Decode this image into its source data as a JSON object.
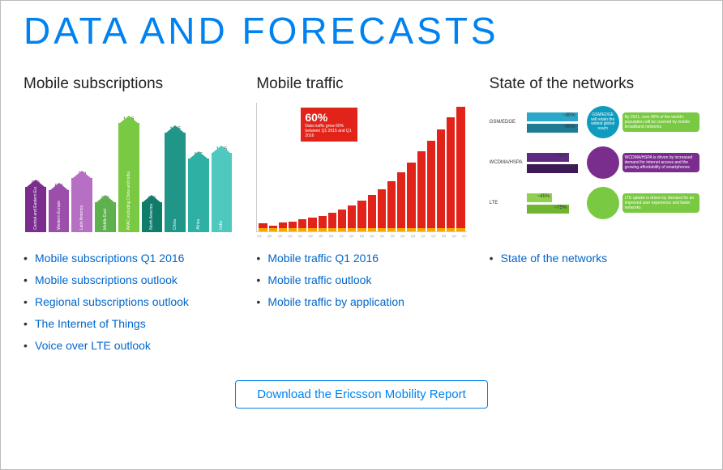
{
  "page_title": "DATA AND FORECASTS",
  "accent_color": "#0082f0",
  "columns": {
    "subscriptions": {
      "title": "Mobile subscriptions",
      "chart": {
        "type": "bar-arrow",
        "max": 1425,
        "bars": [
          {
            "label": "Central and Eastern Europe",
            "value": 590,
            "color": "#7b2d8e"
          },
          {
            "label": "Western Europe",
            "value": 550,
            "color": "#9b4fab"
          },
          {
            "label": "Latin America",
            "value": 710,
            "color": "#b76fc4"
          },
          {
            "label": "Middle East",
            "value": 395,
            "color": "#5fb04f"
          },
          {
            "label": "APAC excluding China and India",
            "value": 1425,
            "color": "#7ac943"
          },
          {
            "label": "North America",
            "value": 395,
            "color": "#0f7c6c"
          },
          {
            "label": "China",
            "value": 1295,
            "color": "#1f9688"
          },
          {
            "label": "Africa",
            "value": 965,
            "color": "#2fb0a4"
          },
          {
            "label": "India",
            "value": 1035,
            "color": "#4fc9c0"
          }
        ]
      },
      "links": [
        "Mobile subscriptions Q1 2016",
        "Mobile subscriptions outlook",
        "Regional subscriptions outlook",
        "The Internet of Things",
        "Voice over LTE outlook"
      ]
    },
    "traffic": {
      "title": "Mobile traffic",
      "chart": {
        "type": "bar",
        "bar_color": "#e2231a",
        "base_color": "#f7a600",
        "callout": {
          "big": "60%",
          "small": "Data traffic grew 60% between Q1 2015 and Q1 2016"
        },
        "values": [
          6,
          3,
          7,
          8,
          11,
          13,
          16,
          20,
          24,
          29,
          35,
          42,
          50,
          60,
          71,
          84,
          98,
          112,
          126,
          142,
          155
        ],
        "max": 155,
        "ticks": [
          "Q1",
          "Q2",
          "Q3",
          "Q4",
          "Q1",
          "Q2",
          "Q3",
          "Q4",
          "Q1",
          "Q2",
          "Q3",
          "Q4",
          "Q1",
          "Q2",
          "Q3",
          "Q4",
          "Q1",
          "Q2",
          "Q3",
          "Q4",
          "Q1"
        ]
      },
      "links": [
        "Mobile traffic Q1 2016",
        "Mobile traffic outlook",
        "Mobile traffic by application"
      ]
    },
    "networks": {
      "title": "State of the networks",
      "rows": [
        {
          "label": "GSM/EDGE",
          "bars": [
            {
              "pct": "~90%",
              "color": "#2aa7c9"
            },
            {
              "pct": "~90%",
              "color": "#1f7b94"
            }
          ],
          "circle_color": "#0e9bbd",
          "circle_text": "GSM/EDGE will retain the widest global reach",
          "desc": "By 2021, over 90% of the world's population will be covered by mobile broadband networks",
          "desc_color": "#7ac943"
        },
        {
          "label": "WCDMA/HSPA",
          "bars": [
            {
              "pct": "~75%",
              "color": "#5e2a84"
            },
            {
              "pct": ">90%",
              "color": "#3e1a58"
            }
          ],
          "circle_color": "#7b2d8e",
          "circle_text": "",
          "desc": "WCDMA/HSPA is driven by increased demand for internet access and the growing affordability of smartphones",
          "desc_color": "#7b2d8e"
        },
        {
          "label": "LTE",
          "bars": [
            {
              "pct": "~45%",
              "color": "#8fd14f"
            },
            {
              "pct": "~75%",
              "color": "#6fb52f"
            }
          ],
          "circle_color": "#7ac943",
          "circle_text": "",
          "desc": "LTE uptake is driven by demand for an improved user experience and faster networks",
          "desc_color": "#7ac943"
        }
      ],
      "links": [
        "State of the networks"
      ]
    }
  },
  "footer_button": "Download the Ericsson Mobility Report"
}
